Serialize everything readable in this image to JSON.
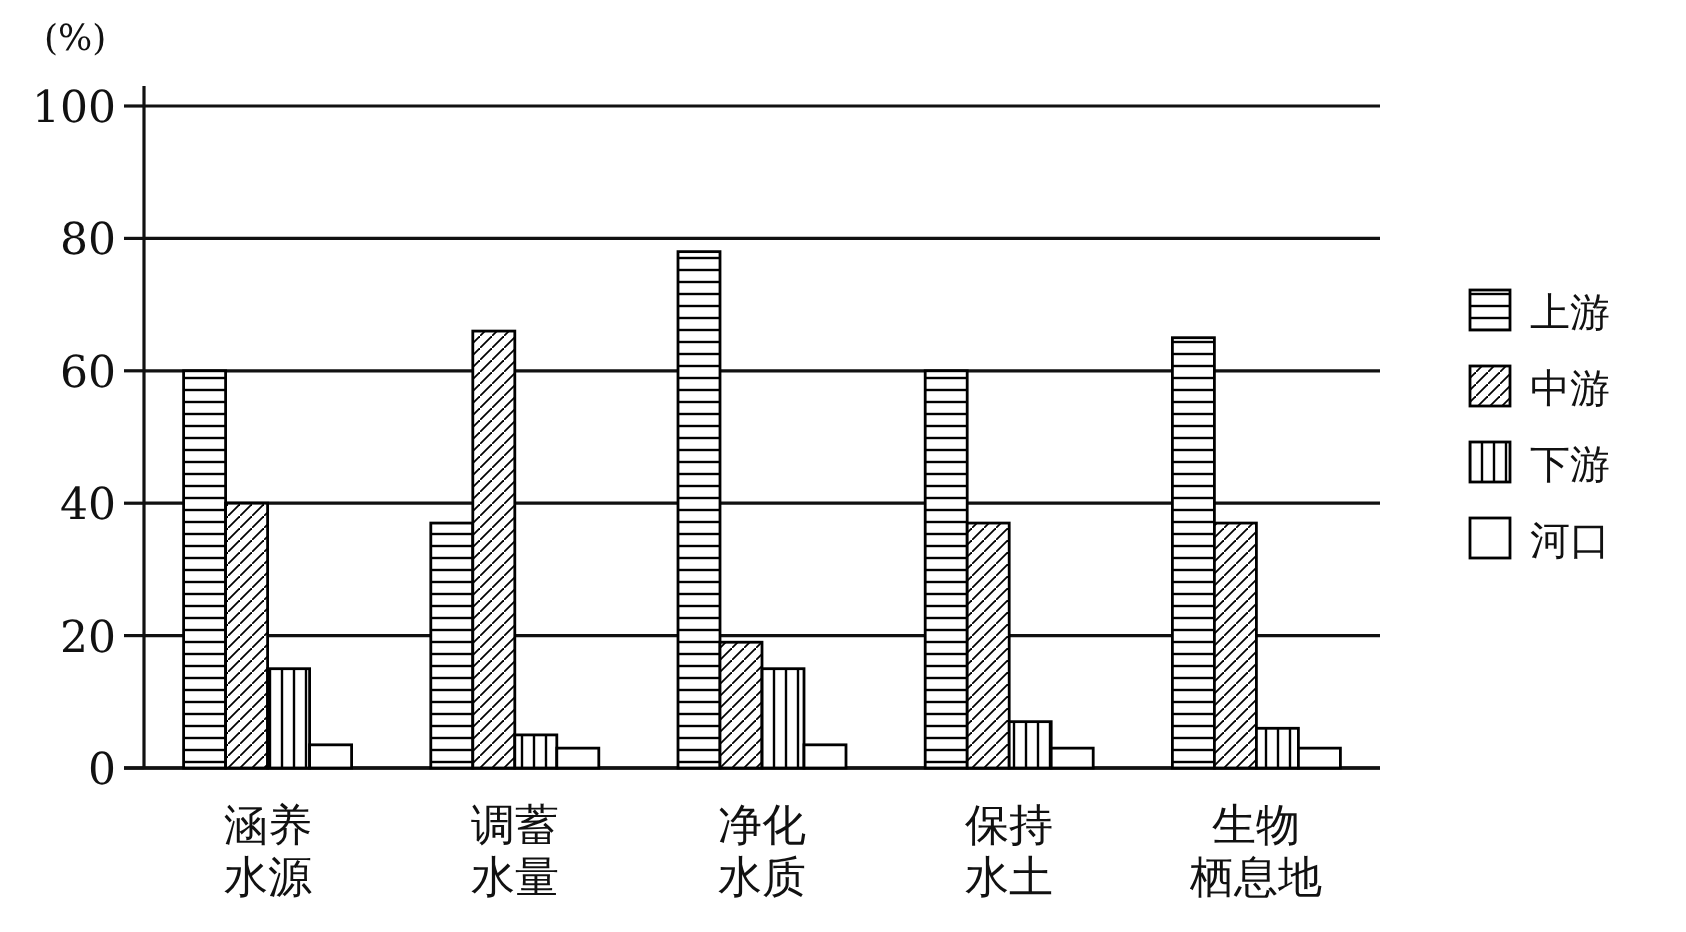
{
  "chart_data": {
    "type": "bar",
    "ylabel": "(%)",
    "categories": [
      "涵养水源",
      "调蓄水量",
      "净化水质",
      "保持水土",
      "生物栖息地"
    ],
    "series": [
      {
        "name": "上游",
        "color": "#000000",
        "values": [
          60,
          37,
          78,
          60,
          65
        ]
      },
      {
        "name": "中游",
        "color": "#000000",
        "values": [
          40,
          66,
          19,
          37,
          37
        ]
      },
      {
        "name": "下游",
        "color": "#000000",
        "values": [
          15,
          5,
          15,
          7,
          6
        ]
      },
      {
        "name": "河口",
        "color": "#000000",
        "values": [
          3.5,
          3,
          3.5,
          3,
          3
        ]
      }
    ],
    "ylim": [
      0,
      100
    ],
    "yticks": [
      0,
      20,
      40,
      60,
      80,
      100
    ],
    "grid": "y",
    "legend": "right"
  }
}
